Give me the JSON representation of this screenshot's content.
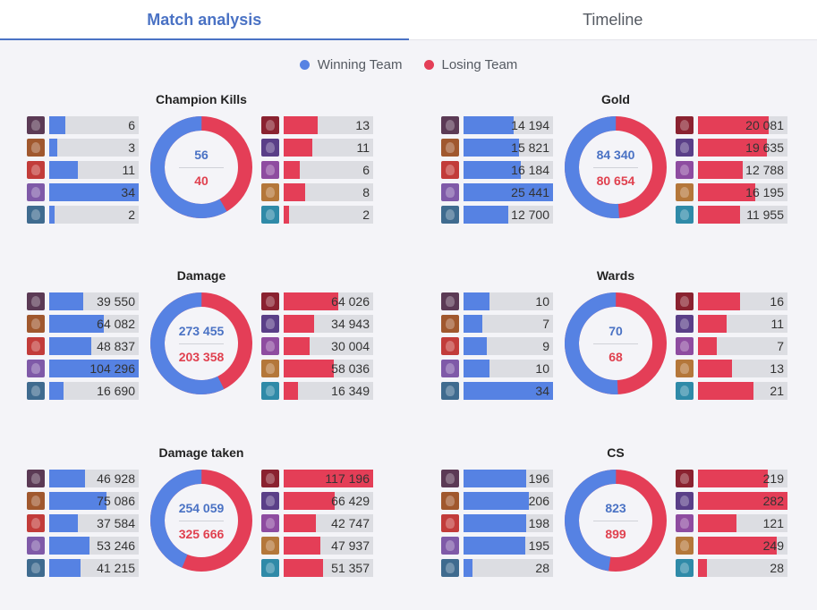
{
  "tabs": [
    {
      "label": "Match analysis",
      "active": true
    },
    {
      "label": "Timeline",
      "active": false
    }
  ],
  "legend": {
    "win_label": "Winning Team",
    "lose_label": "Losing Team",
    "win_color": "#5682e3",
    "lose_color": "#e43e57"
  },
  "portraits": {
    "win": [
      "#5b3a55",
      "#a0582e",
      "#c23c3a",
      "#7f5aa8",
      "#3f6b8f"
    ],
    "lose": [
      "#8a2230",
      "#5a3f88",
      "#8e4ca0",
      "#b4773a",
      "#2f8aa8"
    ]
  },
  "panels": [
    {
      "title": "Champion Kills",
      "win_total": "56",
      "lose_total": "40",
      "win_sum": 56,
      "lose_sum": 40,
      "max": 34,
      "win": [
        {
          "value": 6,
          "label": "6"
        },
        {
          "value": 3,
          "label": "3"
        },
        {
          "value": 11,
          "label": "11"
        },
        {
          "value": 34,
          "label": "34"
        },
        {
          "value": 2,
          "label": "2"
        }
      ],
      "lose": [
        {
          "value": 13,
          "label": "13"
        },
        {
          "value": 11,
          "label": "11"
        },
        {
          "value": 6,
          "label": "6"
        },
        {
          "value": 8,
          "label": "8"
        },
        {
          "value": 2,
          "label": "2"
        }
      ]
    },
    {
      "title": "Gold",
      "win_total": "84 340",
      "lose_total": "80 654",
      "win_sum": 84340,
      "lose_sum": 80654,
      "max": 25441,
      "win": [
        {
          "value": 14194,
          "label": "14 194"
        },
        {
          "value": 15821,
          "label": "15 821"
        },
        {
          "value": 16184,
          "label": "16 184"
        },
        {
          "value": 25441,
          "label": "25 441"
        },
        {
          "value": 12700,
          "label": "12 700"
        }
      ],
      "lose": [
        {
          "value": 20081,
          "label": "20 081"
        },
        {
          "value": 19635,
          "label": "19 635"
        },
        {
          "value": 12788,
          "label": "12 788"
        },
        {
          "value": 16195,
          "label": "16 195"
        },
        {
          "value": 11955,
          "label": "11 955"
        }
      ]
    },
    {
      "title": "Damage",
      "win_total": "273 455",
      "lose_total": "203 358",
      "win_sum": 273455,
      "lose_sum": 203358,
      "max": 104296,
      "win": [
        {
          "value": 39550,
          "label": "39 550"
        },
        {
          "value": 64082,
          "label": "64 082"
        },
        {
          "value": 48837,
          "label": "48 837"
        },
        {
          "value": 104296,
          "label": "104 296"
        },
        {
          "value": 16690,
          "label": "16 690"
        }
      ],
      "lose": [
        {
          "value": 64026,
          "label": "64 026"
        },
        {
          "value": 34943,
          "label": "34 943"
        },
        {
          "value": 30004,
          "label": "30 004"
        },
        {
          "value": 58036,
          "label": "58 036"
        },
        {
          "value": 16349,
          "label": "16 349"
        }
      ]
    },
    {
      "title": "Wards",
      "win_total": "70",
      "lose_total": "68",
      "win_sum": 70,
      "lose_sum": 68,
      "max": 34,
      "win": [
        {
          "value": 10,
          "label": "10"
        },
        {
          "value": 7,
          "label": "7"
        },
        {
          "value": 9,
          "label": "9"
        },
        {
          "value": 10,
          "label": "10"
        },
        {
          "value": 34,
          "label": "34"
        }
      ],
      "lose": [
        {
          "value": 16,
          "label": "16"
        },
        {
          "value": 11,
          "label": "11"
        },
        {
          "value": 7,
          "label": "7"
        },
        {
          "value": 13,
          "label": "13"
        },
        {
          "value": 21,
          "label": "21"
        }
      ]
    },
    {
      "title": "Damage taken",
      "win_total": "254 059",
      "lose_total": "325 666",
      "win_sum": 254059,
      "lose_sum": 325666,
      "max": 117196,
      "win": [
        {
          "value": 46928,
          "label": "46 928"
        },
        {
          "value": 75086,
          "label": "75 086"
        },
        {
          "value": 37584,
          "label": "37 584"
        },
        {
          "value": 53246,
          "label": "53 246"
        },
        {
          "value": 41215,
          "label": "41 215"
        }
      ],
      "lose": [
        {
          "value": 117196,
          "label": "117 196"
        },
        {
          "value": 66429,
          "label": "66 429"
        },
        {
          "value": 42747,
          "label": "42 747"
        },
        {
          "value": 47937,
          "label": "47 937"
        },
        {
          "value": 51357,
          "label": "51 357"
        }
      ]
    },
    {
      "title": "CS",
      "win_total": "823",
      "lose_total": "899",
      "win_sum": 823,
      "lose_sum": 899,
      "max": 282,
      "win": [
        {
          "value": 196,
          "label": "196"
        },
        {
          "value": 206,
          "label": "206"
        },
        {
          "value": 198,
          "label": "198"
        },
        {
          "value": 195,
          "label": "195"
        },
        {
          "value": 28,
          "label": "28"
        }
      ],
      "lose": [
        {
          "value": 219,
          "label": "219"
        },
        {
          "value": 282,
          "label": "282"
        },
        {
          "value": 121,
          "label": "121"
        },
        {
          "value": 249,
          "label": "249"
        },
        {
          "value": 28,
          "label": "28"
        }
      ]
    }
  ]
}
